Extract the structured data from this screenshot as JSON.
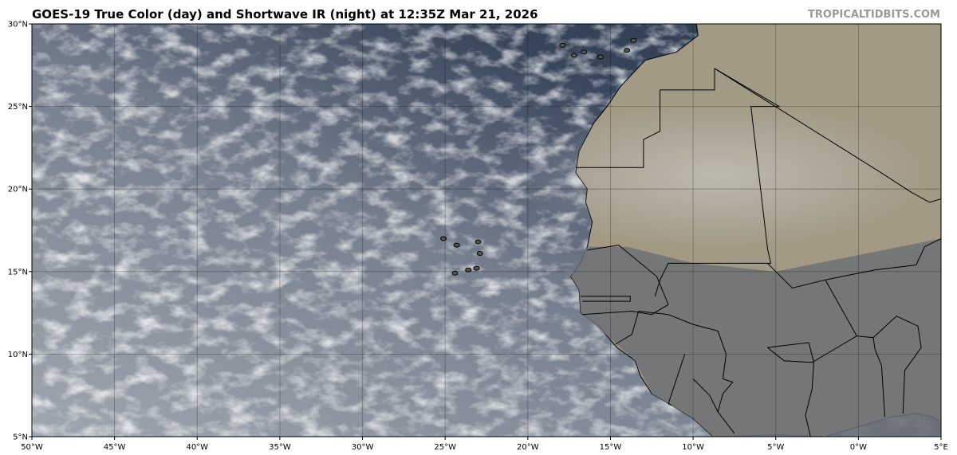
{
  "title": "GOES-19 True Color (day) and Shortwave IR (night) at 12:35Z Mar 21, 2026",
  "watermark": "TROPICALTIDBITS.COM",
  "map": {
    "projection": "equirectangular",
    "lon_range": [
      -50,
      5
    ],
    "lat_range": [
      5,
      30
    ],
    "gridlines": true,
    "lat_ticks": [
      "5°N",
      "10°N",
      "15°N",
      "20°N",
      "25°N",
      "30°N"
    ],
    "lon_ticks": [
      "50°W",
      "45°W",
      "40°W",
      "35°W",
      "30°W",
      "25°W",
      "20°W",
      "15°W",
      "10°W",
      "5°W",
      "0°W",
      "5°E"
    ],
    "colors": {
      "ocean": "#2c3a50",
      "cloud": "#e4e6ea",
      "desert": "#a39a86",
      "sahel": "#6c7076",
      "border": "#000000"
    }
  }
}
